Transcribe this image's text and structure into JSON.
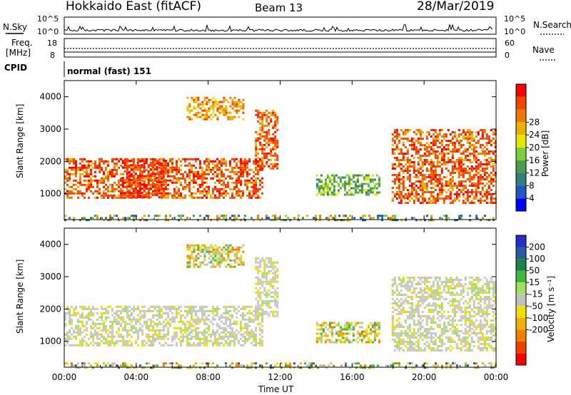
{
  "header": {
    "title": "Hokkaido East (fitACF)",
    "beam": "Beam 13",
    "date": "28/Mar/2019"
  },
  "summary_panels": {
    "nsky_label": "N.Sky",
    "nsky_ticks": [
      "10^5",
      "10^0"
    ],
    "nsearch_label": "N.Search",
    "nsearch_ticks": [
      "10^5",
      "10^0"
    ],
    "freq_label": "Freq.",
    "freq_unit": "[MHz]",
    "freq_ticks": [
      "18",
      "8"
    ],
    "nave_label": "Nave",
    "nave_ticks": [
      "60",
      "0"
    ],
    "cpid_label": "CPID",
    "cpid_text": "normal (fast) 151"
  },
  "colors": {
    "power": [
      "#0000ff",
      "#2255c0",
      "#2f7f7f",
      "#4c9c4c",
      "#7ccc3c",
      "#e6e600",
      "#f0b000",
      "#f07800",
      "#f04400",
      "#ff0000"
    ],
    "velocity": [
      "#2a2ac8",
      "#2a5aa0",
      "#1f7f4f",
      "#3cb83c",
      "#a0e060",
      "#c0c0c0",
      "#f0e000",
      "#f0b000",
      "#f08000",
      "#f04000",
      "#ff0000"
    ],
    "data_gray": "#c8c8c8"
  },
  "chart_data": [
    {
      "type": "heatmap",
      "name": "power",
      "xlabel": "",
      "ylabel": "Slant Range [km]",
      "x_range": [
        "00:00",
        "00:00"
      ],
      "ylim": [
        200,
        4500
      ],
      "yticks": [
        "1000",
        "2000",
        "3000",
        "4000"
      ],
      "colorbar_label": "Power [dB]",
      "colorbar_ticks": [
        "4",
        "8",
        "12",
        "16",
        "20",
        "24",
        "28"
      ],
      "regions": [
        {
          "t0": 0.0,
          "t1": 11.0,
          "r0": 900,
          "r1": 2100,
          "level": "high"
        },
        {
          "t0": 3.2,
          "t1": 5.6,
          "r0": 900,
          "r1": 2050,
          "level": "max"
        },
        {
          "t0": 6.8,
          "t1": 10.0,
          "r0": 3300,
          "r1": 4000,
          "level": "mid"
        },
        {
          "t0": 10.6,
          "t1": 11.8,
          "r0": 1800,
          "r1": 3600,
          "level": "high"
        },
        {
          "t0": 14.0,
          "t1": 17.5,
          "r0": 1000,
          "r1": 1600,
          "level": "low"
        },
        {
          "t0": 18.6,
          "t1": 19.2,
          "r0": 900,
          "r1": 1100,
          "level": "high"
        },
        {
          "t0": 18.2,
          "t1": 24.0,
          "r0": 700,
          "r1": 3000,
          "level": "high"
        },
        {
          "t0": 0.0,
          "t1": 24.0,
          "r0": 200,
          "r1": 350,
          "level": "noise"
        }
      ]
    },
    {
      "type": "heatmap",
      "name": "velocity",
      "xlabel": "Time UT",
      "ylabel": "Slant Range [km]",
      "x_range": [
        "00:00",
        "00:00"
      ],
      "xticks": [
        "00:00",
        "04:00",
        "08:00",
        "12:00",
        "16:00",
        "20:00",
        "00:00"
      ],
      "ylim": [
        200,
        4500
      ],
      "yticks": [
        "1000",
        "2000",
        "3000",
        "4000"
      ],
      "colorbar_label": "Velocity [m s⁻¹]",
      "colorbar_ticks": [
        "200",
        "100",
        "50",
        "15",
        "-15",
        "-50",
        "-100",
        "-200"
      ],
      "regions": [
        {
          "t0": 0.0,
          "t1": 11.0,
          "r0": 900,
          "r1": 2100,
          "level": "gray"
        },
        {
          "t0": 6.8,
          "t1": 10.0,
          "r0": 3300,
          "r1": 4000,
          "level": "mixed"
        },
        {
          "t0": 10.6,
          "t1": 11.8,
          "r0": 1800,
          "r1": 3600,
          "level": "gray"
        },
        {
          "t0": 14.0,
          "t1": 17.5,
          "r0": 1000,
          "r1": 1600,
          "level": "mixed"
        },
        {
          "t0": 18.2,
          "t1": 24.0,
          "r0": 700,
          "r1": 3000,
          "level": "gray"
        },
        {
          "t0": 0.0,
          "t1": 24.0,
          "r0": 200,
          "r1": 350,
          "level": "noise"
        }
      ]
    }
  ]
}
